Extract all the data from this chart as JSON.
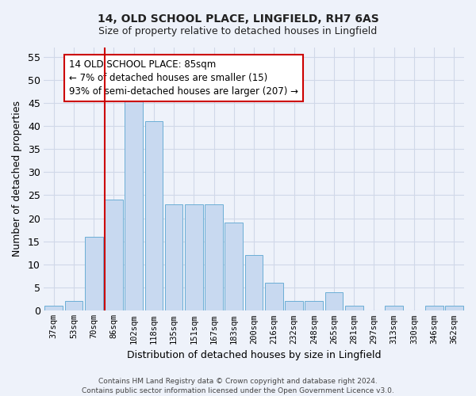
{
  "title1": "14, OLD SCHOOL PLACE, LINGFIELD, RH7 6AS",
  "title2": "Size of property relative to detached houses in Lingfield",
  "xlabel": "Distribution of detached houses by size in Lingfield",
  "ylabel": "Number of detached properties",
  "categories": [
    "37sqm",
    "53sqm",
    "70sqm",
    "86sqm",
    "102sqm",
    "118sqm",
    "135sqm",
    "151sqm",
    "167sqm",
    "183sqm",
    "200sqm",
    "216sqm",
    "232sqm",
    "248sqm",
    "265sqm",
    "281sqm",
    "297sqm",
    "313sqm",
    "330sqm",
    "346sqm",
    "362sqm"
  ],
  "values": [
    1,
    2,
    16,
    24,
    46,
    41,
    23,
    23,
    23,
    19,
    12,
    6,
    2,
    2,
    4,
    1,
    0,
    1,
    0,
    1,
    1
  ],
  "bar_color": "#c8d9f0",
  "bar_edge_color": "#6baed6",
  "grid_color": "#d0d8e8",
  "vline_x_index": 3,
  "vline_color": "#cc0000",
  "annotation_text": "14 OLD SCHOOL PLACE: 85sqm\n← 7% of detached houses are smaller (15)\n93% of semi-detached houses are larger (207) →",
  "annotation_box_color": "#ffffff",
  "annotation_box_edge": "#cc0000",
  "ylim": [
    0,
    57
  ],
  "yticks": [
    0,
    5,
    10,
    15,
    20,
    25,
    30,
    35,
    40,
    45,
    50,
    55
  ],
  "footnote": "Contains HM Land Registry data © Crown copyright and database right 2024.\nContains public sector information licensed under the Open Government Licence v3.0.",
  "background_color": "#eef2fa"
}
